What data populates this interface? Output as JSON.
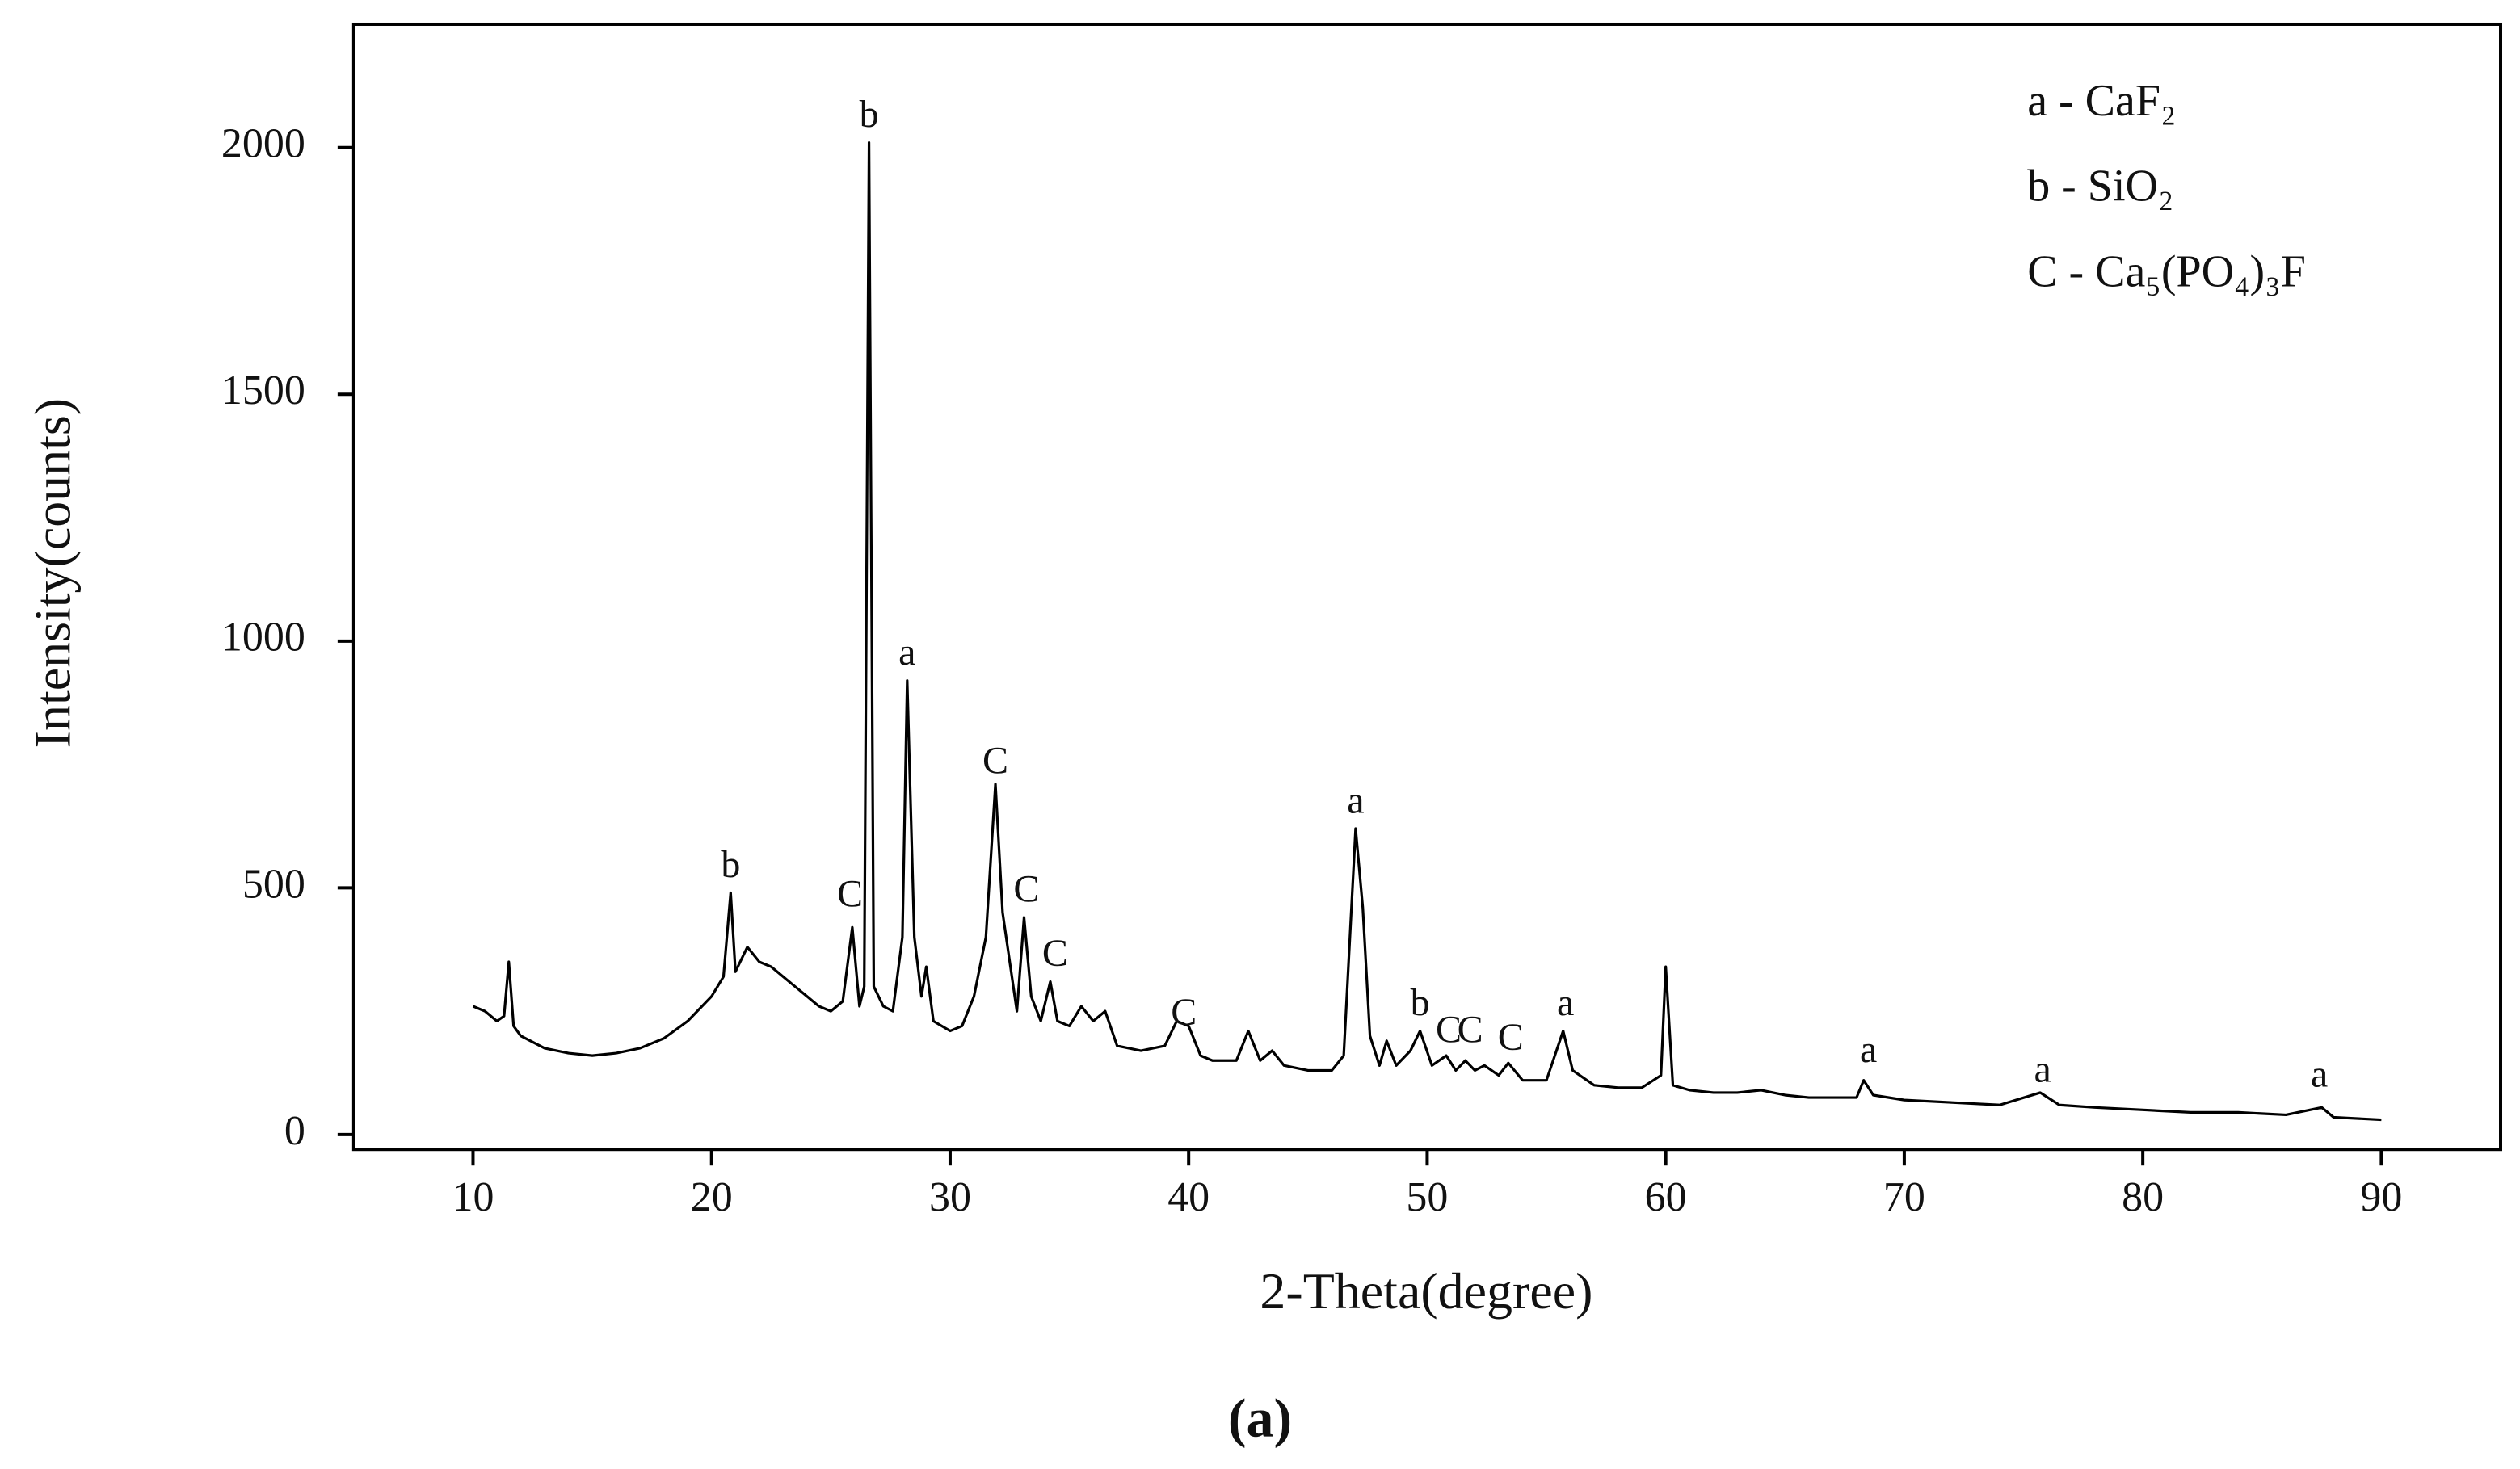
{
  "chart_data": {
    "type": "line",
    "xlabel": "2-Theta(degree)",
    "ylabel": "Intensity(counts)",
    "caption": "(a)",
    "color": "#000000",
    "xlim": [
      5,
      95
    ],
    "xticks": [
      10,
      20,
      30,
      40,
      50,
      60,
      70,
      80,
      90
    ],
    "ylim": [
      -30,
      2250
    ],
    "yticks": [
      0,
      500,
      1000,
      1500,
      2000
    ],
    "x": [
      10,
      10.5,
      11,
      11.3,
      11.5,
      11.7,
      12,
      13,
      14,
      15,
      16,
      17,
      18,
      19,
      20,
      20.5,
      20.8,
      21,
      21.5,
      22,
      22.5,
      23,
      23.5,
      24,
      24.5,
      25,
      25.5,
      25.9,
      26.2,
      26.4,
      26.6,
      26.8,
      27.2,
      27.6,
      28,
      28.2,
      28.5,
      28.8,
      29,
      29.3,
      30,
      30.5,
      31,
      31.5,
      31.9,
      32.2,
      32.5,
      32.8,
      33.1,
      33.4,
      33.8,
      34.2,
      34.5,
      35,
      35.5,
      36,
      36.5,
      37,
      38,
      39,
      39.5,
      40,
      40.5,
      41,
      42,
      42.5,
      43,
      43.5,
      44,
      45,
      46,
      46.5,
      47,
      47.3,
      47.6,
      48,
      48.3,
      48.7,
      49.3,
      49.7,
      50.2,
      50.8,
      51.2,
      51.6,
      52,
      52.4,
      53,
      53.4,
      54,
      55,
      55.7,
      56.1,
      57,
      58,
      59,
      59.8,
      60,
      60.3,
      61,
      62,
      63,
      64,
      65,
      66,
      67,
      68,
      68.3,
      68.7,
      70,
      72,
      74,
      75.7,
      76.5,
      78,
      80,
      82,
      84,
      86,
      87.5,
      88,
      90
    ],
    "values": [
      260,
      250,
      230,
      240,
      350,
      220,
      200,
      175,
      165,
      160,
      165,
      175,
      195,
      230,
      280,
      320,
      490,
      330,
      380,
      350,
      340,
      320,
      300,
      280,
      260,
      250,
      270,
      420,
      260,
      300,
      2010,
      300,
      260,
      250,
      400,
      920,
      400,
      280,
      340,
      230,
      210,
      220,
      280,
      400,
      710,
      450,
      350,
      250,
      440,
      280,
      230,
      310,
      230,
      220,
      260,
      230,
      250,
      180,
      170,
      180,
      230,
      220,
      160,
      150,
      150,
      210,
      150,
      170,
      140,
      130,
      130,
      160,
      620,
      460,
      200,
      140,
      190,
      140,
      170,
      210,
      140,
      160,
      130,
      150,
      130,
      140,
      120,
      145,
      110,
      110,
      210,
      130,
      100,
      95,
      95,
      120,
      340,
      100,
      90,
      85,
      85,
      90,
      80,
      75,
      75,
      75,
      110,
      80,
      70,
      65,
      60,
      85,
      60,
      55,
      50,
      45,
      45,
      40,
      55,
      35,
      30
    ],
    "annotations": [
      {
        "text": "b",
        "x": 20.8,
        "y": 540
      },
      {
        "text": "C",
        "x": 25.8,
        "y": 480
      },
      {
        "text": "b",
        "x": 26.6,
        "y": 2060
      },
      {
        "text": "a",
        "x": 28.2,
        "y": 970
      },
      {
        "text": "C",
        "x": 31.9,
        "y": 750
      },
      {
        "text": "C",
        "x": 33.2,
        "y": 490
      },
      {
        "text": "C",
        "x": 34.4,
        "y": 360
      },
      {
        "text": "C",
        "x": 39.8,
        "y": 240
      },
      {
        "text": "a",
        "x": 47,
        "y": 670
      },
      {
        "text": "b",
        "x": 49.7,
        "y": 260
      },
      {
        "text": "C",
        "x": 50.9,
        "y": 205
      },
      {
        "text": "C",
        "x": 51.8,
        "y": 205
      },
      {
        "text": "C",
        "x": 53.5,
        "y": 190
      },
      {
        "text": "a",
        "x": 55.8,
        "y": 260
      },
      {
        "text": "a",
        "x": 68.5,
        "y": 165
      },
      {
        "text": "a",
        "x": 75.8,
        "y": 125
      },
      {
        "text": "a",
        "x": 87.4,
        "y": 115
      }
    ],
    "legend_notes": [
      "a - CaF₂",
      "b - SiO₂",
      "C - Ca₅(PO₄)₃F"
    ]
  }
}
